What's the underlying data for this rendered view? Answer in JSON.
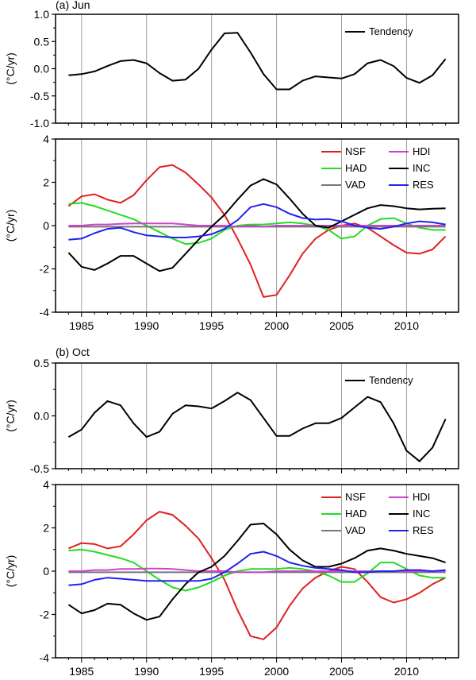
{
  "chart_data": [
    {
      "type": "line",
      "panel_label": "(a) Jun",
      "ylabel": "(°C/yr)",
      "ylim": [
        -1.0,
        1.0
      ],
      "yticks": [
        "-1.0",
        "-0.5",
        "0.0",
        "0.5",
        "1.0"
      ],
      "xlim": [
        1983,
        2014
      ],
      "xticks": [
        "1985",
        "1990",
        "1995",
        "2000",
        "2005",
        "2010"
      ],
      "show_x_tick_labels": false,
      "grid": "vertical",
      "legend_position": "top-right",
      "x": [
        1984,
        1985,
        1986,
        1987,
        1988,
        1989,
        1990,
        1991,
        1992,
        1993,
        1994,
        1995,
        1996,
        1997,
        1998,
        1999,
        2000,
        2001,
        2002,
        2003,
        2004,
        2005,
        2006,
        2007,
        2008,
        2009,
        2010,
        2011,
        2012,
        2013
      ],
      "series": [
        {
          "name": "Tendency",
          "color": "#000000",
          "values": [
            -0.12,
            -0.1,
            -0.05,
            0.05,
            0.14,
            0.16,
            0.1,
            -0.08,
            -0.22,
            -0.2,
            0.0,
            0.35,
            0.65,
            0.66,
            0.3,
            -0.1,
            -0.38,
            -0.38,
            -0.22,
            -0.14,
            -0.16,
            -0.18,
            -0.1,
            0.1,
            0.16,
            0.05,
            -0.17,
            -0.26,
            -0.12,
            0.18
          ]
        }
      ]
    },
    {
      "type": "line",
      "ylabel": "(°C/yr)",
      "ylim": [
        -4,
        4
      ],
      "yticks": [
        "-4",
        "-2",
        "0",
        "2",
        "4"
      ],
      "xlim": [
        1983,
        2014
      ],
      "xticks": [
        "1985",
        "1990",
        "1995",
        "2000",
        "2005",
        "2010"
      ],
      "show_x_tick_labels": true,
      "grid": "vertical",
      "legend_position": "top-right",
      "x": [
        1984,
        1985,
        1986,
        1987,
        1988,
        1989,
        1990,
        1991,
        1992,
        1993,
        1994,
        1995,
        1996,
        1997,
        1998,
        1999,
        2000,
        2001,
        2002,
        2003,
        2004,
        2005,
        2006,
        2007,
        2008,
        2009,
        2010,
        2011,
        2012,
        2013
      ],
      "series": [
        {
          "name": "NSF",
          "color": "#e02020",
          "values": [
            0.9,
            1.35,
            1.45,
            1.2,
            1.05,
            1.4,
            2.1,
            2.7,
            2.8,
            2.45,
            1.9,
            1.3,
            0.5,
            -0.6,
            -1.8,
            -3.3,
            -3.2,
            -2.3,
            -1.3,
            -0.6,
            -0.2,
            0.0,
            0.1,
            -0.1,
            -0.5,
            -0.9,
            -1.25,
            -1.3,
            -1.1,
            -0.5
          ]
        },
        {
          "name": "HAD",
          "color": "#22dd22",
          "values": [
            1.0,
            1.05,
            0.9,
            0.7,
            0.5,
            0.3,
            0.0,
            -0.3,
            -0.6,
            -0.85,
            -0.8,
            -0.6,
            -0.2,
            0.0,
            0.05,
            0.05,
            0.1,
            0.15,
            0.1,
            0.0,
            -0.2,
            -0.6,
            -0.5,
            0.0,
            0.3,
            0.35,
            0.1,
            -0.1,
            -0.2,
            -0.2
          ]
        },
        {
          "name": "VAD",
          "color": "#777777",
          "values": [
            -0.05,
            -0.05,
            -0.05,
            -0.05,
            -0.05,
            -0.05,
            -0.05,
            -0.05,
            -0.05,
            -0.05,
            -0.05,
            -0.05,
            -0.05,
            -0.05,
            0.0,
            -0.05,
            -0.05,
            -0.05,
            -0.05,
            -0.05,
            -0.05,
            -0.05,
            -0.05,
            -0.05,
            -0.05,
            -0.05,
            -0.05,
            -0.05,
            -0.05,
            -0.05
          ]
        },
        {
          "name": "HDI",
          "color": "#cc44cc",
          "values": [
            0.0,
            0.0,
            0.05,
            0.05,
            0.08,
            0.1,
            0.1,
            0.1,
            0.1,
            0.05,
            0.0,
            0.0,
            0.0,
            -0.05,
            -0.05,
            -0.05,
            0.0,
            0.0,
            0.0,
            0.0,
            0.0,
            0.0,
            0.0,
            0.0,
            0.0,
            0.0,
            0.0,
            0.0,
            0.0,
            0.0
          ]
        },
        {
          "name": "INC",
          "color": "#000000",
          "values": [
            -1.25,
            -1.9,
            -2.05,
            -1.75,
            -1.4,
            -1.4,
            -1.75,
            -2.1,
            -1.95,
            -1.3,
            -0.65,
            -0.05,
            0.5,
            1.2,
            1.85,
            2.15,
            1.9,
            1.25,
            0.55,
            0.0,
            -0.1,
            0.2,
            0.5,
            0.8,
            0.95,
            0.9,
            0.8,
            0.75,
            0.78,
            0.8
          ]
        },
        {
          "name": "RES",
          "color": "#2222ee",
          "values": [
            -0.65,
            -0.6,
            -0.35,
            -0.15,
            -0.1,
            -0.3,
            -0.45,
            -0.5,
            -0.55,
            -0.55,
            -0.5,
            -0.4,
            -0.15,
            0.25,
            0.85,
            1.0,
            0.85,
            0.55,
            0.35,
            0.28,
            0.3,
            0.2,
            0.0,
            -0.1,
            -0.15,
            -0.05,
            0.1,
            0.2,
            0.15,
            0.05
          ]
        }
      ]
    },
    {
      "type": "line",
      "panel_label": "(b) Oct",
      "ylabel": "(°C/yr)",
      "ylim": [
        -0.5,
        0.5
      ],
      "yticks": [
        "-0.5",
        "0.0",
        "0.5"
      ],
      "xlim": [
        1983,
        2014
      ],
      "xticks": [
        "1985",
        "1990",
        "1995",
        "2000",
        "2005",
        "2010"
      ],
      "show_x_tick_labels": false,
      "grid": "vertical",
      "legend_position": "top-right",
      "x": [
        1984,
        1985,
        1986,
        1987,
        1988,
        1989,
        1990,
        1991,
        1992,
        1993,
        1994,
        1995,
        1996,
        1997,
        1998,
        1999,
        2000,
        2001,
        2002,
        2003,
        2004,
        2005,
        2006,
        2007,
        2008,
        2009,
        2010,
        2011,
        2012,
        2013
      ],
      "series": [
        {
          "name": "Tendency",
          "color": "#000000",
          "values": [
            -0.2,
            -0.13,
            0.03,
            0.14,
            0.1,
            -0.07,
            -0.2,
            -0.15,
            0.02,
            0.1,
            0.09,
            0.07,
            0.14,
            0.22,
            0.15,
            -0.02,
            -0.19,
            -0.19,
            -0.12,
            -0.07,
            -0.07,
            -0.02,
            0.08,
            0.18,
            0.13,
            -0.07,
            -0.33,
            -0.43,
            -0.3,
            -0.03
          ]
        }
      ]
    },
    {
      "type": "line",
      "ylabel": "(°C/yr)",
      "ylim": [
        -4,
        4
      ],
      "yticks": [
        "-4",
        "-2",
        "0",
        "2",
        "4"
      ],
      "xlim": [
        1983,
        2014
      ],
      "xticks": [
        "1985",
        "1990",
        "1995",
        "2000",
        "2005",
        "2010"
      ],
      "show_x_tick_labels": true,
      "grid": "vertical",
      "legend_position": "top-right",
      "x": [
        1984,
        1985,
        1986,
        1987,
        1988,
        1989,
        1990,
        1991,
        1992,
        1993,
        1994,
        1995,
        1996,
        1997,
        1998,
        1999,
        2000,
        2001,
        2002,
        2003,
        2004,
        2005,
        2006,
        2007,
        2008,
        2009,
        2010,
        2011,
        2012,
        2013
      ],
      "series": [
        {
          "name": "NSF",
          "color": "#e02020",
          "values": [
            1.05,
            1.3,
            1.25,
            1.05,
            1.15,
            1.7,
            2.35,
            2.75,
            2.6,
            2.1,
            1.5,
            0.6,
            -0.4,
            -1.8,
            -3.0,
            -3.15,
            -2.6,
            -1.6,
            -0.8,
            -0.3,
            0.0,
            0.2,
            0.1,
            -0.5,
            -1.2,
            -1.45,
            -1.3,
            -1.0,
            -0.6,
            -0.3
          ]
        },
        {
          "name": "HAD",
          "color": "#22dd22",
          "values": [
            0.95,
            1.0,
            0.9,
            0.75,
            0.6,
            0.4,
            0.0,
            -0.4,
            -0.75,
            -0.9,
            -0.75,
            -0.5,
            -0.2,
            0.0,
            0.1,
            0.1,
            0.1,
            0.15,
            0.1,
            0.0,
            -0.2,
            -0.5,
            -0.5,
            -0.1,
            0.4,
            0.4,
            0.1,
            -0.2,
            -0.3,
            -0.3
          ]
        },
        {
          "name": "VAD",
          "color": "#777777",
          "values": [
            -0.05,
            -0.05,
            -0.05,
            -0.05,
            -0.05,
            -0.05,
            -0.05,
            -0.05,
            -0.05,
            -0.05,
            -0.05,
            -0.05,
            -0.05,
            -0.05,
            -0.05,
            -0.05,
            -0.05,
            -0.05,
            -0.05,
            -0.05,
            -0.05,
            -0.05,
            -0.05,
            -0.05,
            -0.05,
            -0.05,
            -0.05,
            -0.05,
            -0.05,
            -0.05
          ]
        },
        {
          "name": "HDI",
          "color": "#cc44cc",
          "values": [
            0.0,
            0.0,
            0.05,
            0.05,
            0.1,
            0.1,
            0.12,
            0.12,
            0.1,
            0.05,
            0.0,
            0.0,
            0.0,
            -0.05,
            -0.05,
            -0.05,
            0.0,
            0.0,
            0.0,
            0.0,
            0.0,
            0.0,
            0.0,
            0.0,
            0.0,
            0.0,
            0.0,
            0.0,
            0.0,
            0.0
          ]
        },
        {
          "name": "INC",
          "color": "#000000",
          "values": [
            -1.55,
            -1.95,
            -1.8,
            -1.5,
            -1.55,
            -1.95,
            -2.25,
            -2.1,
            -1.3,
            -0.6,
            -0.05,
            0.2,
            0.7,
            1.4,
            2.15,
            2.2,
            1.7,
            1.0,
            0.5,
            0.2,
            0.2,
            0.35,
            0.6,
            0.95,
            1.05,
            0.95,
            0.8,
            0.7,
            0.6,
            0.4
          ]
        },
        {
          "name": "RES",
          "color": "#2222ee",
          "values": [
            -0.65,
            -0.6,
            -0.4,
            -0.3,
            -0.35,
            -0.4,
            -0.45,
            -0.45,
            -0.45,
            -0.45,
            -0.45,
            -0.35,
            -0.05,
            0.35,
            0.8,
            0.9,
            0.7,
            0.4,
            0.25,
            0.15,
            0.1,
            0.05,
            -0.05,
            -0.05,
            0.0,
            0.0,
            0.05,
            0.05,
            0.0,
            0.05
          ]
        }
      ]
    }
  ]
}
